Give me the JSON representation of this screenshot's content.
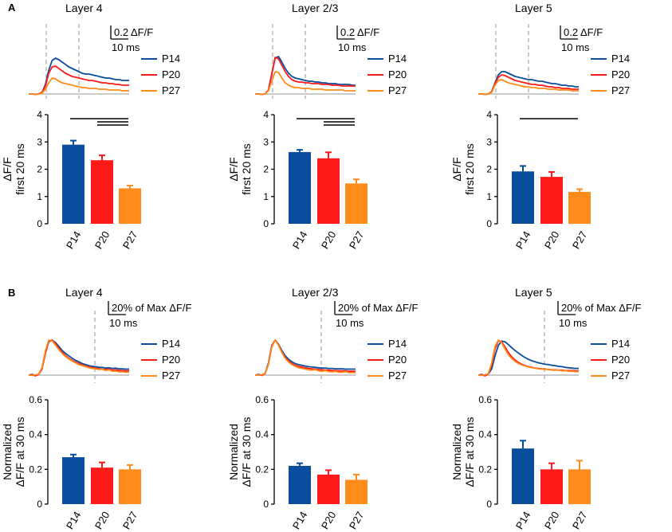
{
  "figure": {
    "panel_labels": [
      "A",
      "B"
    ],
    "group_labels": [
      "P14",
      "P20",
      "P27"
    ],
    "colors": {
      "P14": "#0a4d9c",
      "P20": "#ff1a1a",
      "P27": "#ff8c1a",
      "axis": "#000000",
      "baseline": "#b8b8b8",
      "dash": "#b8b8b8"
    }
  },
  "chart_data": [
    {
      "panel": "A",
      "type": "bar",
      "title": "Layer 4",
      "categories": [
        "P14",
        "P20",
        "P27"
      ],
      "values": [
        2.9,
        2.33,
        1.3
      ],
      "errors": [
        0.15,
        0.18,
        0.1
      ],
      "ylabel_lines": [
        "ΔF/F",
        "first 20 ms"
      ],
      "ylim": [
        0,
        4
      ],
      "yticks": [
        "0",
        "1",
        "2",
        "3",
        "4"
      ],
      "tick_values": [
        0,
        1,
        2,
        3,
        4
      ],
      "significance": [
        [
          0,
          2
        ],
        [
          1,
          2
        ],
        [
          1,
          2
        ]
      ],
      "trace": {
        "scalebar": {
          "amplitude_label": "0.2 ΔF/F",
          "time_label": "10 ms"
        },
        "legend": [
          "P14",
          "P20",
          "P27"
        ],
        "series": [
          {
            "name": "P14",
            "values": [
              0,
              0,
              -0.005,
              0,
              0.02,
              0.12,
              0.3,
              0.42,
              0.45,
              0.43,
              0.4,
              0.37,
              0.34,
              0.32,
              0.3,
              0.28,
              0.26,
              0.25,
              0.25,
              0.24,
              0.23,
              0.22,
              0.21,
              0.2,
              0.2,
              0.19,
              0.18,
              0.18,
              0.17,
              0.17,
              0.17
            ]
          },
          {
            "name": "P20",
            "values": [
              0,
              0,
              -0.005,
              0,
              0.02,
              0.1,
              0.26,
              0.34,
              0.35,
              0.32,
              0.29,
              0.26,
              0.24,
              0.22,
              0.21,
              0.2,
              0.19,
              0.18,
              0.17,
              0.17,
              0.16,
              0.15,
              0.14,
              0.14,
              0.13,
              0.13,
              0.12,
              0.12,
              0.11,
              0.11,
              0.11
            ]
          },
          {
            "name": "P27",
            "values": [
              0,
              0,
              -0.005,
              0,
              0.01,
              0.06,
              0.14,
              0.2,
              0.19,
              0.16,
              0.14,
              0.13,
              0.12,
              0.11,
              0.1,
              0.09,
              0.08,
              0.08,
              0.07,
              0.07,
              0.07,
              0.06,
              0.06,
              0.06,
              0.05,
              0.05,
              0.05,
              0.05,
              0.04,
              0.04,
              0.04
            ]
          }
        ]
      }
    },
    {
      "panel": "A",
      "type": "bar",
      "title": "Layer 2/3",
      "categories": [
        "P14",
        "P20",
        "P27"
      ],
      "values": [
        2.63,
        2.4,
        1.48
      ],
      "errors": [
        0.08,
        0.22,
        0.15
      ],
      "ylabel_lines": [
        "ΔF/F",
        "first 20 ms"
      ],
      "ylim": [
        0,
        4
      ],
      "yticks": [
        "0",
        "1",
        "2",
        "3",
        "4"
      ],
      "tick_values": [
        0,
        1,
        2,
        3,
        4
      ],
      "significance": [
        [
          0,
          2
        ],
        [
          1,
          2
        ],
        [
          1,
          2
        ]
      ],
      "trace": {
        "scalebar": {
          "amplitude_label": "0.2 ΔF/F",
          "time_label": "10 ms"
        },
        "legend": [
          "P14",
          "P20",
          "P27"
        ],
        "series": [
          {
            "name": "P14",
            "values": [
              0,
              0,
              -0.005,
              0,
              0.05,
              0.25,
              0.45,
              0.47,
              0.4,
              0.32,
              0.26,
              0.22,
              0.2,
              0.19,
              0.18,
              0.17,
              0.16,
              0.16,
              0.15,
              0.15,
              0.14,
              0.14,
              0.13,
              0.13,
              0.13,
              0.12,
              0.12,
              0.12,
              0.12,
              0.11,
              0.11
            ]
          },
          {
            "name": "P20",
            "values": [
              0,
              0,
              -0.005,
              0,
              0.05,
              0.26,
              0.46,
              0.44,
              0.36,
              0.28,
              0.22,
              0.18,
              0.16,
              0.15,
              0.15,
              0.14,
              0.14,
              0.13,
              0.13,
              0.13,
              0.12,
              0.12,
              0.12,
              0.11,
              0.11,
              0.11,
              0.1,
              0.1,
              0.1,
              0.1,
              0.1
            ]
          },
          {
            "name": "P27",
            "values": [
              0,
              0,
              -0.005,
              0,
              0.04,
              0.16,
              0.28,
              0.27,
              0.2,
              0.14,
              0.11,
              0.09,
              0.08,
              0.08,
              0.07,
              0.07,
              0.07,
              0.06,
              0.06,
              0.06,
              0.06,
              0.05,
              0.05,
              0.05,
              0.05,
              0.05,
              0.05,
              0.04,
              0.04,
              0.04,
              0.04
            ]
          }
        ]
      }
    },
    {
      "panel": "A",
      "type": "bar",
      "title": "Layer 5",
      "categories": [
        "P14",
        "P20",
        "P27"
      ],
      "values": [
        1.92,
        1.72,
        1.17
      ],
      "errors": [
        0.2,
        0.18,
        0.1
      ],
      "ylabel_lines": [
        "ΔF/F",
        "first 20 ms"
      ],
      "ylim": [
        0,
        4
      ],
      "yticks": [
        "0",
        "1",
        "2",
        "3",
        "4"
      ],
      "tick_values": [
        0,
        1,
        2,
        3,
        4
      ],
      "significance": [
        [
          0,
          2
        ]
      ],
      "trace": {
        "scalebar": {
          "amplitude_label": "0.2 ΔF/F",
          "time_label": "10 ms"
        },
        "legend": [
          "P14",
          "P20",
          "P27"
        ],
        "series": [
          {
            "name": "P14",
            "values": [
              0,
              0,
              -0.005,
              0,
              0.03,
              0.14,
              0.24,
              0.28,
              0.28,
              0.26,
              0.24,
              0.22,
              0.21,
              0.2,
              0.19,
              0.18,
              0.18,
              0.17,
              0.16,
              0.16,
              0.15,
              0.14,
              0.13,
              0.13,
              0.12,
              0.11,
              0.11,
              0.1,
              0.1,
              0.09,
              0.09
            ]
          },
          {
            "name": "P20",
            "values": [
              0,
              0,
              -0.005,
              0,
              0.03,
              0.13,
              0.21,
              0.24,
              0.23,
              0.21,
              0.19,
              0.17,
              0.16,
              0.15,
              0.14,
              0.13,
              0.12,
              0.12,
              0.11,
              0.11,
              0.1,
              0.09,
              0.09,
              0.08,
              0.08,
              0.07,
              0.07,
              0.07,
              0.06,
              0.06,
              0.06
            ]
          },
          {
            "name": "P27",
            "values": [
              0,
              0,
              -0.005,
              0,
              0.02,
              0.11,
              0.17,
              0.18,
              0.16,
              0.14,
              0.13,
              0.12,
              0.11,
              0.1,
              0.09,
              0.09,
              0.08,
              0.08,
              0.07,
              0.07,
              0.07,
              0.06,
              0.06,
              0.06,
              0.05,
              0.05,
              0.05,
              0.05,
              0.04,
              0.04,
              0.04
            ]
          }
        ]
      }
    },
    {
      "panel": "B",
      "type": "bar",
      "title": "Layer 4",
      "categories": [
        "P14",
        "P20",
        "P27"
      ],
      "values": [
        0.27,
        0.21,
        0.2
      ],
      "errors": [
        0.015,
        0.03,
        0.025
      ],
      "ylabel_lines": [
        "Normalized",
        "ΔF/F at 30 ms"
      ],
      "ylim": [
        0,
        0.6
      ],
      "yticks": [
        "0",
        "0.2",
        "0.4",
        "0.6"
      ],
      "tick_values": [
        0,
        0.2,
        0.4,
        0.6
      ],
      "significance": [],
      "trace": {
        "scalebar": {
          "amplitude_label": "20% of Max ΔF/F",
          "time_label": "10 ms"
        },
        "legend": [
          "P14",
          "P20",
          "P27"
        ],
        "series": [
          {
            "name": "P14",
            "values": [
              0,
              0.02,
              -0.01,
              0.03,
              0.2,
              0.65,
              0.95,
              1.0,
              0.93,
              0.82,
              0.7,
              0.62,
              0.55,
              0.48,
              0.42,
              0.38,
              0.33,
              0.3,
              0.27,
              0.25,
              0.24,
              0.22,
              0.22,
              0.2,
              0.21,
              0.19,
              0.2,
              0.18,
              0.18,
              0.17,
              0.17
            ]
          },
          {
            "name": "P20",
            "values": [
              0,
              0.01,
              -0.02,
              0.02,
              0.18,
              0.62,
              0.97,
              1.0,
              0.9,
              0.77,
              0.65,
              0.56,
              0.48,
              0.42,
              0.37,
              0.33,
              0.29,
              0.26,
              0.23,
              0.21,
              0.2,
              0.18,
              0.17,
              0.16,
              0.17,
              0.14,
              0.15,
              0.13,
              0.13,
              0.12,
              0.12
            ]
          },
          {
            "name": "P27",
            "values": [
              0,
              -0.01,
              0.01,
              0.03,
              0.22,
              0.7,
              1.0,
              0.98,
              0.86,
              0.73,
              0.62,
              0.53,
              0.46,
              0.4,
              0.35,
              0.3,
              0.27,
              0.24,
              0.21,
              0.19,
              0.18,
              0.16,
              0.17,
              0.13,
              0.15,
              0.11,
              0.12,
              0.09,
              0.1,
              0.08,
              0.09
            ]
          }
        ]
      }
    },
    {
      "panel": "B",
      "type": "bar",
      "title": "Layer 2/3",
      "categories": [
        "P14",
        "P20",
        "P27"
      ],
      "values": [
        0.22,
        0.17,
        0.14
      ],
      "errors": [
        0.015,
        0.025,
        0.03
      ],
      "ylabel_lines": [
        "Normalized",
        "ΔF/F at 30 ms"
      ],
      "ylim": [
        0,
        0.6
      ],
      "yticks": [
        "0",
        "0.2",
        "0.4",
        "0.6"
      ],
      "tick_values": [
        0,
        0.2,
        0.4,
        0.6
      ],
      "significance": [],
      "trace": {
        "scalebar": {
          "amplitude_label": "20% of Max ΔF/F",
          "time_label": "10 ms"
        },
        "legend": [
          "P14",
          "P20",
          "P27"
        ],
        "series": [
          {
            "name": "P14",
            "values": [
              0,
              0.02,
              0,
              0.05,
              0.35,
              0.85,
              1.0,
              0.88,
              0.7,
              0.55,
              0.45,
              0.38,
              0.33,
              0.3,
              0.28,
              0.26,
              0.24,
              0.23,
              0.22,
              0.21,
              0.2,
              0.2,
              0.19,
              0.19,
              0.18,
              0.18,
              0.18,
              0.17,
              0.17,
              0.17,
              0.17
            ]
          },
          {
            "name": "P20",
            "values": [
              0,
              0.01,
              -0.01,
              0.04,
              0.32,
              0.83,
              1.0,
              0.86,
              0.66,
              0.5,
              0.4,
              0.33,
              0.28,
              0.25,
              0.23,
              0.21,
              0.19,
              0.18,
              0.17,
              0.16,
              0.15,
              0.14,
              0.14,
              0.13,
              0.13,
              0.12,
              0.12,
              0.12,
              0.11,
              0.11,
              0.11
            ]
          },
          {
            "name": "P27",
            "values": [
              0,
              0,
              0.01,
              0.05,
              0.3,
              0.8,
              1.0,
              0.85,
              0.64,
              0.48,
              0.37,
              0.3,
              0.25,
              0.21,
              0.19,
              0.17,
              0.15,
              0.14,
              0.16,
              0.12,
              0.11,
              0.13,
              0.1,
              0.09,
              0.11,
              0.08,
              0.08,
              0.1,
              0.07,
              0.07,
              0.07
            ]
          }
        ]
      }
    },
    {
      "panel": "B",
      "type": "bar",
      "title": "Layer 5",
      "categories": [
        "P14",
        "P20",
        "P27"
      ],
      "values": [
        0.32,
        0.2,
        0.2
      ],
      "errors": [
        0.045,
        0.035,
        0.05
      ],
      "ylabel_lines": [
        "Normalized",
        "ΔF/F at 30 ms"
      ],
      "ylim": [
        0,
        0.6
      ],
      "yticks": [
        "0",
        "0.2",
        "0.4",
        "0.6"
      ],
      "tick_values": [
        0,
        0.2,
        0.4,
        0.6
      ],
      "significance": [],
      "trace": {
        "scalebar": {
          "amplitude_label": "20% of Max ΔF/F",
          "time_label": "10 ms"
        },
        "legend": [
          "P14",
          "P20",
          "P27"
        ],
        "series": [
          {
            "name": "P14",
            "values": [
              0,
              0.02,
              -0.01,
              0.03,
              0.18,
              0.55,
              0.85,
              0.97,
              0.95,
              0.87,
              0.78,
              0.7,
              0.63,
              0.56,
              0.5,
              0.45,
              0.41,
              0.38,
              0.35,
              0.33,
              0.31,
              0.3,
              0.28,
              0.27,
              0.25,
              0.24,
              0.22,
              0.21,
              0.2,
              0.19,
              0.19
            ]
          },
          {
            "name": "P20",
            "values": [
              0,
              0.01,
              -0.02,
              0.03,
              0.3,
              0.75,
              0.98,
              0.95,
              0.8,
              0.64,
              0.52,
              0.43,
              0.36,
              0.31,
              0.27,
              0.24,
              0.22,
              0.2,
              0.19,
              0.18,
              0.17,
              0.16,
              0.15,
              0.15,
              0.14,
              0.14,
              0.13,
              0.13,
              0.13,
              0.12,
              0.12
            ]
          },
          {
            "name": "P27",
            "values": [
              0,
              -0.01,
              0.01,
              0.04,
              0.35,
              0.82,
              1.0,
              0.92,
              0.74,
              0.58,
              0.47,
              0.39,
              0.33,
              0.29,
              0.26,
              0.23,
              0.21,
              0.2,
              0.18,
              0.17,
              0.16,
              0.17,
              0.14,
              0.14,
              0.15,
              0.12,
              0.13,
              0.11,
              0.11,
              0.1,
              0.1
            ]
          }
        ]
      }
    }
  ]
}
